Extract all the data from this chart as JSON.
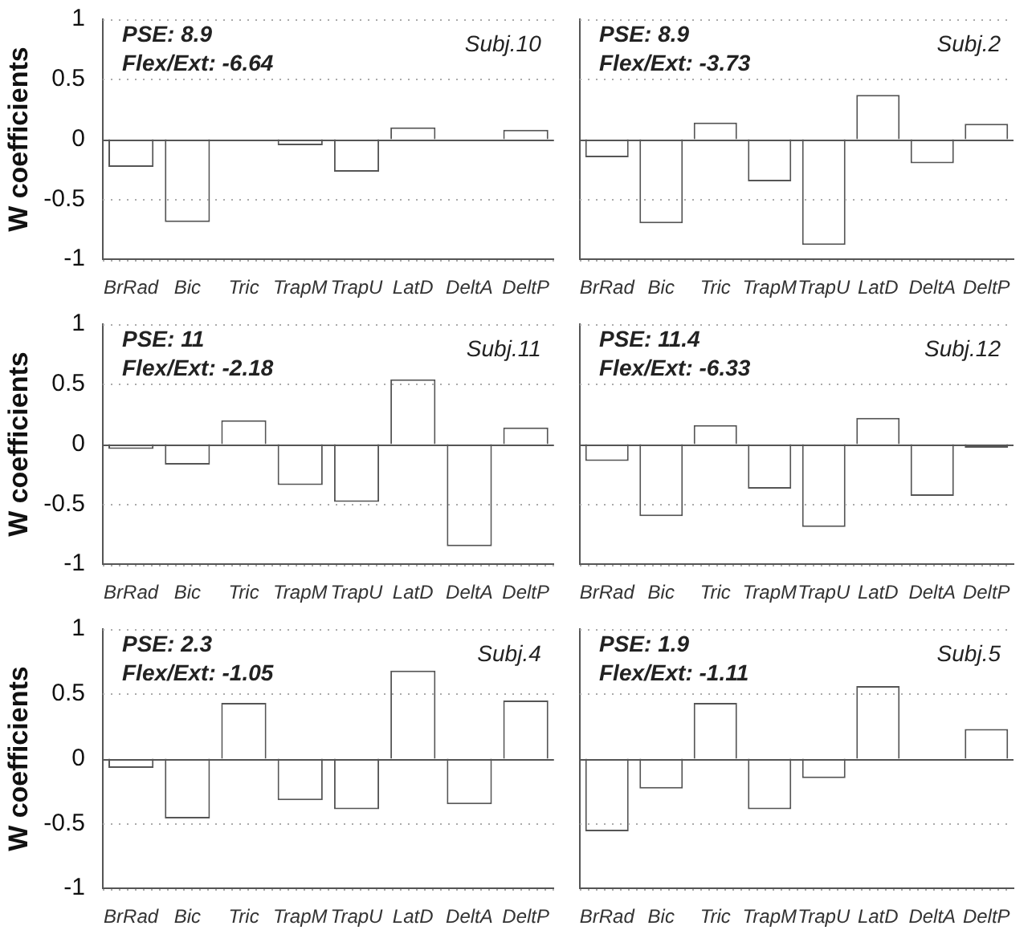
{
  "chart_data": [
    {
      "type": "bar",
      "categories": [
        "BrRad",
        "Bic",
        "Tric",
        "TrapM",
        "TrapU",
        "LatD",
        "DeltA",
        "DeltP"
      ],
      "values": [
        -0.23,
        -0.69,
        0,
        -0.05,
        -0.27,
        0.1,
        0,
        0.08
      ],
      "color": "#ffffff",
      "ylabel": "W coefficients",
      "ylim": [
        -1,
        1
      ],
      "yticks": [
        -1,
        -0.5,
        0,
        0.5,
        1
      ],
      "grid": "y",
      "annotations": [
        "PSE: 8.9",
        "Flex/Ext: -6.64",
        "Subj.10"
      ]
    },
    {
      "type": "bar",
      "categories": [
        "BrRad",
        "Bic",
        "Tric",
        "TrapM",
        "TrapU",
        "LatD",
        "DeltA",
        "DeltP"
      ],
      "values": [
        -0.15,
        -0.7,
        0.14,
        -0.35,
        -0.88,
        0.37,
        -0.2,
        0.13
      ],
      "color": "#ffffff",
      "ylim": [
        -1,
        1
      ],
      "yticks": [
        -1,
        -0.5,
        0,
        0.5,
        1
      ],
      "grid": "y",
      "tick_labels": "x",
      "annotations": [
        "PSE: 8.9",
        "Flex/Ext: -3.73",
        "Subj.2"
      ]
    },
    {
      "type": "bar",
      "categories": [
        "BrRad",
        "Bic",
        "Tric",
        "TrapM",
        "TrapU",
        "LatD",
        "DeltA",
        "DeltP"
      ],
      "values": [
        -0.04,
        -0.17,
        0.2,
        -0.34,
        -0.48,
        0.54,
        -0.85,
        0.14
      ],
      "color": "#ffffff",
      "ylabel": "W coefficients",
      "ylim": [
        -1,
        1
      ],
      "yticks": [
        -1,
        -0.5,
        0,
        0.5,
        1
      ],
      "grid": "y",
      "annotations": [
        "PSE: 11",
        "Flex/Ext: -2.18",
        "Subj.11"
      ]
    },
    {
      "type": "bar",
      "categories": [
        "BrRad",
        "Bic",
        "Tric",
        "TrapM",
        "TrapU",
        "LatD",
        "DeltA",
        "DeltP"
      ],
      "values": [
        -0.14,
        -0.6,
        0.16,
        -0.37,
        -0.69,
        0.22,
        -0.43,
        -0.03
      ],
      "color": "#ffffff",
      "ylim": [
        -1,
        1
      ],
      "yticks": [
        -1,
        -0.5,
        0,
        0.5,
        1
      ],
      "grid": "y",
      "tick_labels": "x",
      "annotations": [
        "PSE: 11.4",
        "Flex/Ext: -6.33",
        "Subj.12"
      ]
    },
    {
      "type": "bar",
      "categories": [
        "BrRad",
        "Bic",
        "Tric",
        "TrapM",
        "TrapU",
        "LatD",
        "DeltA",
        "DeltP"
      ],
      "values": [
        -0.07,
        -0.46,
        0.43,
        -0.32,
        -0.39,
        0.68,
        -0.35,
        0.45
      ],
      "color": "#ffffff",
      "ylabel": "W coefficients",
      "ylim": [
        -1,
        1
      ],
      "yticks": [
        -1,
        -0.5,
        0,
        0.5,
        1
      ],
      "grid": "y",
      "annotations": [
        "PSE: 2.3",
        "Flex/Ext: -1.05",
        "Subj.4"
      ]
    },
    {
      "type": "bar",
      "categories": [
        "BrRad",
        "Bic",
        "Tric",
        "TrapM",
        "TrapU",
        "LatD",
        "DeltA",
        "DeltP"
      ],
      "values": [
        -0.56,
        -0.23,
        0.43,
        -0.39,
        -0.15,
        0.56,
        0,
        0.23
      ],
      "color": "#ffffff",
      "ylim": [
        -1,
        1
      ],
      "yticks": [
        -1,
        -0.5,
        0,
        0.5,
        1
      ],
      "grid": "y",
      "tick_labels": "x",
      "annotations": [
        "PSE: 1.9",
        "Flex/Ext: -1.11",
        "Subj.5"
      ]
    }
  ]
}
